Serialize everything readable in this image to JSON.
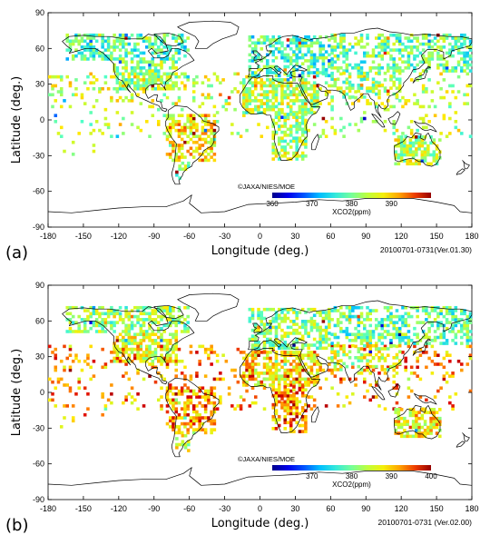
{
  "panels": [
    {
      "label": "(a)",
      "xlabel": "Longitude (deg.)",
      "ylabel": "Latitude (deg.)",
      "xticks": [
        "-180",
        "-150",
        "-120",
        "-90",
        "-60",
        "-30",
        "0",
        "30",
        "60",
        "90",
        "120",
        "150",
        "180"
      ],
      "yticks": [
        "90",
        "60",
        "30",
        "0",
        "-30",
        "-60",
        "-90"
      ],
      "copyright": "©JAXA/NIES/MOE",
      "colorbar": {
        "min": 360,
        "max": 400,
        "ticks": [
          "360",
          "370",
          "380",
          "390"
        ],
        "title": "XCO2(ppm)"
      },
      "stamp": "20100701-0731(Ver.01.30)"
    },
    {
      "label": "(b)",
      "xlabel": "Longitude (deg.)",
      "ylabel": "Latitude (deg.)",
      "xticks": [
        "-180",
        "-150",
        "-120",
        "-90",
        "-60",
        "-30",
        "0",
        "30",
        "60",
        "90",
        "120",
        "150",
        "180"
      ],
      "yticks": [
        "90",
        "60",
        "30",
        "0",
        "-30",
        "-60",
        "-90"
      ],
      "copyright": "©JAXA/NIES/MOE",
      "colorbar": {
        "min": 360,
        "max": 400,
        "ticks": [
          "370",
          "380",
          "390",
          "400"
        ],
        "title": "XCO2(ppm)"
      },
      "stamp": "20100701-0731 (Ver.02.00)"
    }
  ],
  "colors": {
    "low": "#0000b0",
    "mid": "#40ffc0",
    "high": "#b00000"
  }
}
